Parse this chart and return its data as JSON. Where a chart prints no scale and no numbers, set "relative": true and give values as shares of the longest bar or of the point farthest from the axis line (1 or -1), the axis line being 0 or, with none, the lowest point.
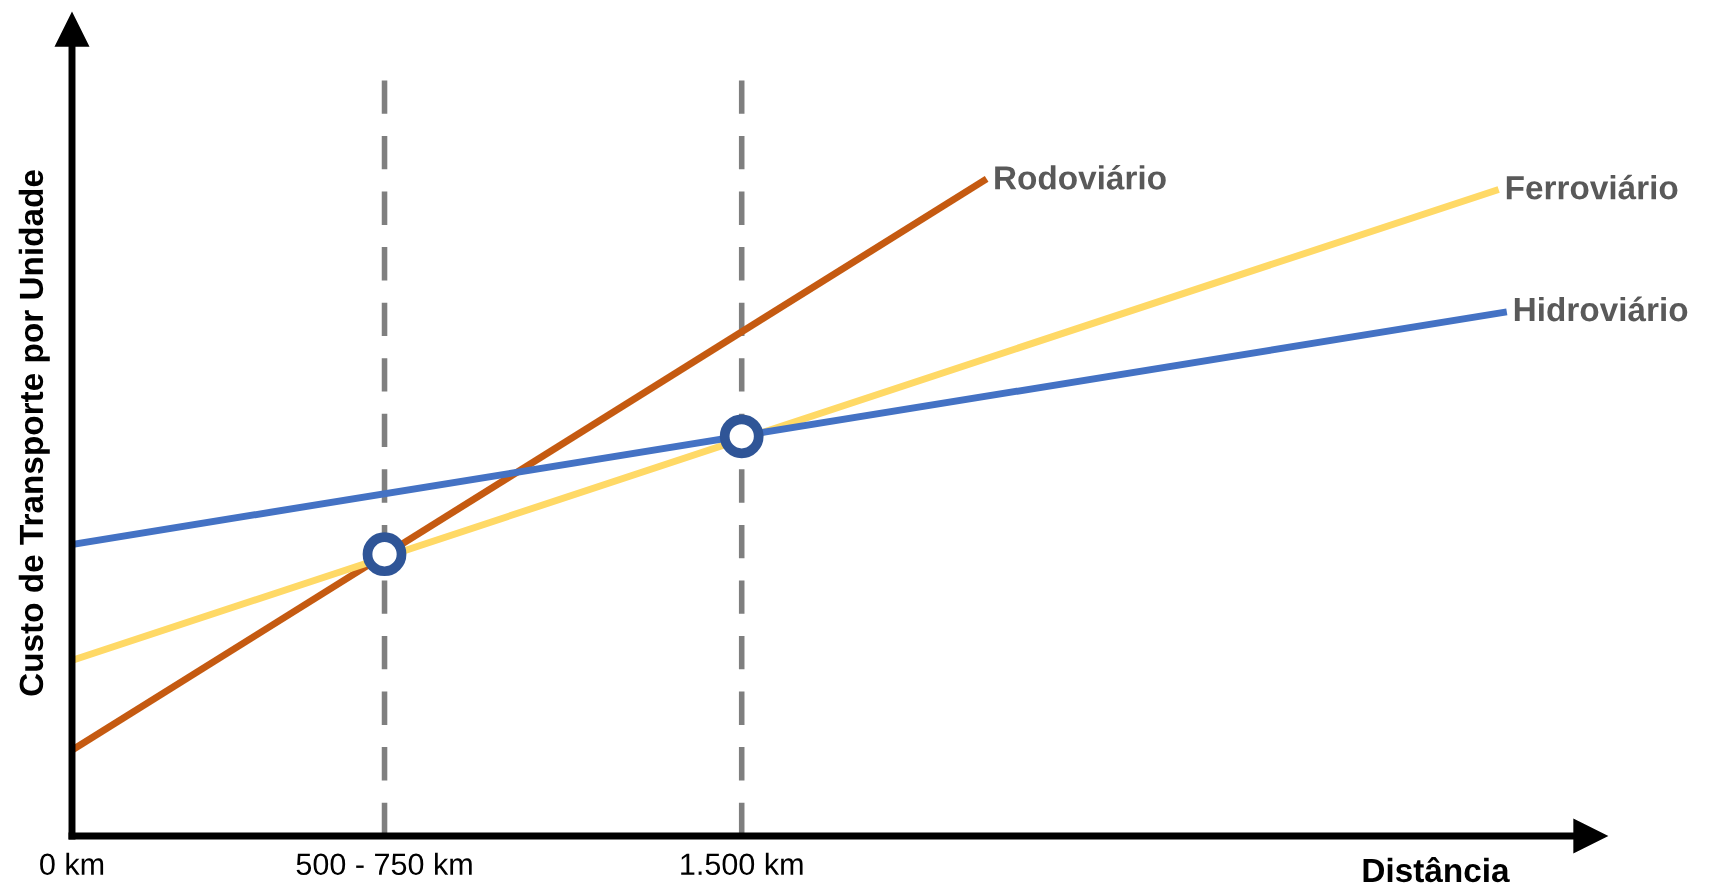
{
  "chart_data": {
    "type": "line",
    "relative": true,
    "xlabel": "Distância",
    "ylabel": "Custo de Transporte por Unidade",
    "xlim": [
      0,
      3400
    ],
    "xticks": [
      {
        "value": 0,
        "label": "0 km"
      },
      {
        "value": 700,
        "label": "500 - 750 km"
      },
      {
        "value": 1500,
        "label": "1.500 km"
      }
    ],
    "tick_labels": "x",
    "grid": false,
    "legend": false,
    "series": [
      {
        "name": "Rodoviário",
        "color": "#c55a11",
        "x": [
          0,
          2042
        ],
        "values": [
          0.131,
          1.0
        ]
      },
      {
        "name": "Ferroviário",
        "color": "#ffd966",
        "x": [
          0,
          3188
        ],
        "values": [
          0.268,
          0.985
        ]
      },
      {
        "name": "Hidroviário",
        "color": "#4472c4",
        "x": [
          0,
          3206
        ],
        "values": [
          0.445,
          0.799
        ]
      },
      {
        "type": "scatter",
        "marker": "circle",
        "color": "#2f5597",
        "x": [
          700,
          1500
        ],
        "values": [
          0.43,
          0.61
        ]
      }
    ],
    "ref_lines": [
      {
        "axis": "x",
        "value": 700,
        "color": "#7f7f7f",
        "line_style": "dashed"
      },
      {
        "axis": "x",
        "value": 1500,
        "color": "#7f7f7f",
        "line_style": "dashed"
      }
    ]
  }
}
